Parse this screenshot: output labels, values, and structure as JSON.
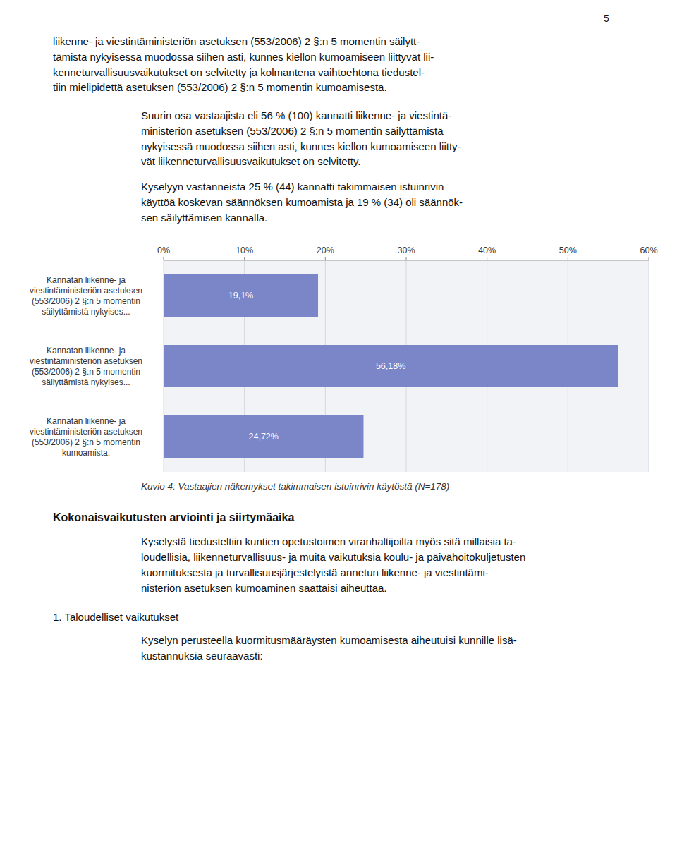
{
  "page": {
    "page_number": "5",
    "para1": "liikenne- ja viestintäministeriön asetuksen (553/2006) 2 §:n 5 momentin säilytt-\ntämistä nykyisessä muodossa siihen asti, kunnes kiellon kumoamiseen liittyvät lii-\nkenneturvallisuusvaikutukset on selvitetty ja kolmantena vaihtoehtona tiedustel-\ntiin mielipidettä asetuksen (553/2006) 2 §:n 5 momentin kumoamisesta.",
    "para2": "Suurin osa vastaajista eli 56 % (100) kannatti liikenne- ja viestintä-\nministeriön asetuksen (553/2006) 2 §:n 5 momentin säilyttämistä\nnykyisessä muodossa siihen asti, kunnes kiellon kumoamiseen liitty-\nvät liikenneturvallisuusvaikutukset on selvitetty.",
    "para3": "Kyselyyn vastanneista 25 % (44) kannatti takimmaisen istuinrivin\nkäyttöä koskevan säännöksen kumoamista ja 19 % (34) oli säännök-\nsen säilyttämisen kannalla.",
    "heading1": "Kokonaisvaikutusten arviointi ja siirtymäaika",
    "para4": "Kyselystä tiedusteltiin kuntien opetustoimen viranhaltijoilta myös sitä millaisia ta-\nloudellisia, liikenneturvallisuus- ja muita vaikutuksia koulu- ja päivähoitokuljetusten\nkuormituksesta ja turvallisuusjärjestelyistä annetun liikenne- ja viestintämi-\nnisteriön asetuksen kumoaminen saattaisi aiheuttaa.",
    "subheading1": "1. Taloudelliset vaikutukset",
    "para5": "Kyselyn perusteella kuormitusmääräysten kumoamisesta aiheutuisi kunnille lisä-\nkustannuksia seuraavasti:"
  },
  "chart_data": {
    "type": "bar",
    "orientation": "horizontal",
    "title": "Kuvio 4: Vastaajien näkemykset takimmaisen istuinrivin käytöstä (N=178)",
    "categories": [
      "Kannatan liikenne- ja\nviestintäministeriön asetuksen\n(553/2006) 2 §:n 5 momentin\nsäilyttämistä nykyises...",
      "Kannatan liikenne- ja\nviestintäministeriön asetuksen\n(553/2006) 2 §:n 5 momentin\nsäilyttämistä nykyises...",
      "Kannatan liikenne- ja\nviestintäministeriön asetuksen\n(553/2006) 2 §:n 5 momentin\nkumoamista."
    ],
    "values": [
      19.1,
      56.18,
      24.72
    ],
    "value_labels": [
      "19,1%",
      "56,18%",
      "24,72%"
    ],
    "data_labels": true,
    "color": "#7B86C8",
    "xlim": [
      0,
      60
    ],
    "xticks": [
      {
        "value": 0,
        "label": "0%"
      },
      {
        "value": 10,
        "label": "10%"
      },
      {
        "value": 20,
        "label": "20%"
      },
      {
        "value": 30,
        "label": "30%"
      },
      {
        "value": 40,
        "label": "40%"
      },
      {
        "value": 50,
        "label": "50%"
      },
      {
        "value": 60,
        "label": "60%"
      }
    ],
    "grid": true
  }
}
